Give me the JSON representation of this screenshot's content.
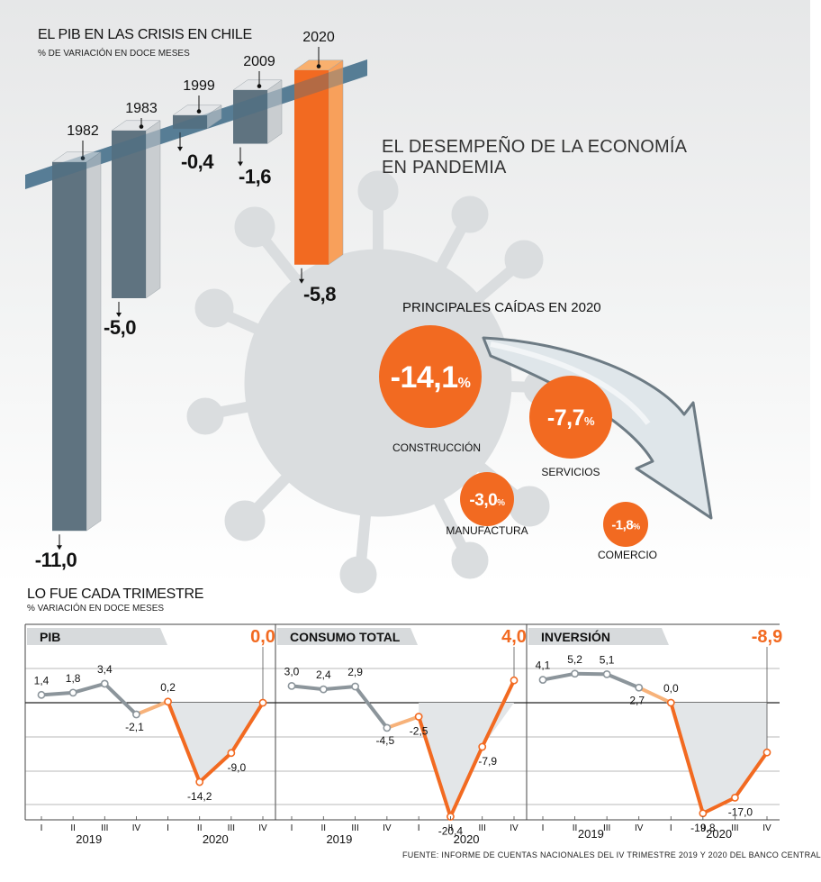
{
  "header": {
    "title": "EL PIB EN LAS CRISIS EN CHILE",
    "subtitle": "% DE VARIACIÓN EN DOCE MESES"
  },
  "pandemic_title": [
    "EL DESEMPEÑO DE LA ECONOMÍA",
    "EN PANDEMIA"
  ],
  "falls_title": "PRINCIPALES CAÍDAS EN 2020",
  "quarterly_title": "LO FUE CADA TRIMESTRE",
  "quarterly_subtitle": "% VARIACIÓN EN DOCE MESES",
  "footer": "FUENTE: INFORME DE CUENTAS NACIONALES DEL IV TRIMESTRE 2019 Y 2020 DEL BANCO CENTRAL",
  "colors": {
    "orange": "#f26a21",
    "gray_bar": "#5f7380",
    "gray_line": "#8c959b",
    "light_orange": "#f7b27a",
    "virus": "#dadddf",
    "arrow_fill": "#dfe6ea",
    "arrow_stroke": "#6d7b84"
  },
  "chart_data": [
    {
      "type": "bar",
      "title": "EL PIB EN LAS CRISIS EN CHILE",
      "subtitle": "% DE VARIACIÓN EN DOCE MESES",
      "categories": [
        "1982",
        "1983",
        "1999",
        "2009",
        "2020"
      ],
      "values": [
        -11.0,
        -5.0,
        -0.4,
        -1.6,
        -5.8
      ],
      "labels": [
        "-11,0",
        "-5,0",
        "-0,4",
        "-1,6",
        "-5,8"
      ],
      "highlight": "2020"
    },
    {
      "type": "bubble",
      "title": "PRINCIPALES CAÍDAS EN 2020",
      "categories": [
        "CONSTRUCCIÓN",
        "SERVICIOS",
        "MANUFACTURA",
        "COMERCIO"
      ],
      "values": [
        -14.1,
        -7.7,
        -3.0,
        -1.8
      ],
      "labels": [
        "-14,1",
        "-7,7",
        "-3,0",
        "-1,8"
      ],
      "unit": "%"
    },
    {
      "type": "line",
      "title": "PIB",
      "x": [
        "I",
        "II",
        "III",
        "IV",
        "I",
        "II",
        "III",
        "IV"
      ],
      "years": [
        "2019",
        "2020"
      ],
      "values": [
        1.4,
        1.8,
        3.4,
        -2.1,
        0.2,
        -14.2,
        -9.0,
        0.0
      ],
      "labels": [
        "1,4",
        "1,8",
        "3,4",
        "-2,1",
        "0,2",
        "-14,2",
        "-9,0",
        ""
      ],
      "last_label": "0,0",
      "ylim": [
        -21,
        6
      ]
    },
    {
      "type": "line",
      "title": "CONSUMO TOTAL",
      "x": [
        "I",
        "II",
        "III",
        "IV",
        "I",
        "II",
        "III",
        "IV"
      ],
      "years": [
        "2019",
        "2020"
      ],
      "values": [
        3.0,
        2.4,
        2.9,
        -4.5,
        -2.5,
        -20.4,
        -7.9,
        4.0
      ],
      "labels": [
        "3,0",
        "2,4",
        "2,9",
        "-4,5",
        "-2,5",
        "-20,4",
        "-7,9",
        ""
      ],
      "last_label": "4,0",
      "ylim": [
        -21,
        6
      ]
    },
    {
      "type": "line",
      "title": "INVERSIÓN",
      "x": [
        "I",
        "II",
        "III",
        "IV",
        "I",
        "II",
        "III",
        "IV"
      ],
      "years": [
        "2019",
        "2020"
      ],
      "values": [
        4.1,
        5.2,
        5.1,
        2.7,
        0.0,
        -19.8,
        -17.0,
        -8.9
      ],
      "labels": [
        "4,1",
        "5,2",
        "5,1",
        "2,7",
        "0,0",
        "-19,8",
        "-17,0",
        ""
      ],
      "last_label": "-8,9",
      "ylim": [
        -21,
        6
      ]
    }
  ]
}
